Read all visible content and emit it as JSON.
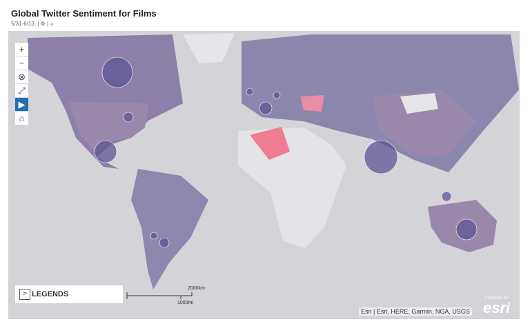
{
  "header": {
    "title": "Global Twitter Sentiment for Films",
    "date_range": "5/31-6/13"
  },
  "legend": {
    "label": "LEGENDS"
  },
  "scale": {
    "km": "2000km",
    "mi": "1000mi"
  },
  "attribution": "Esri | Esri, HERE, Garmin, NGA, USGS",
  "logo": {
    "powered": "POWERED BY",
    "name": "esri"
  }
}
